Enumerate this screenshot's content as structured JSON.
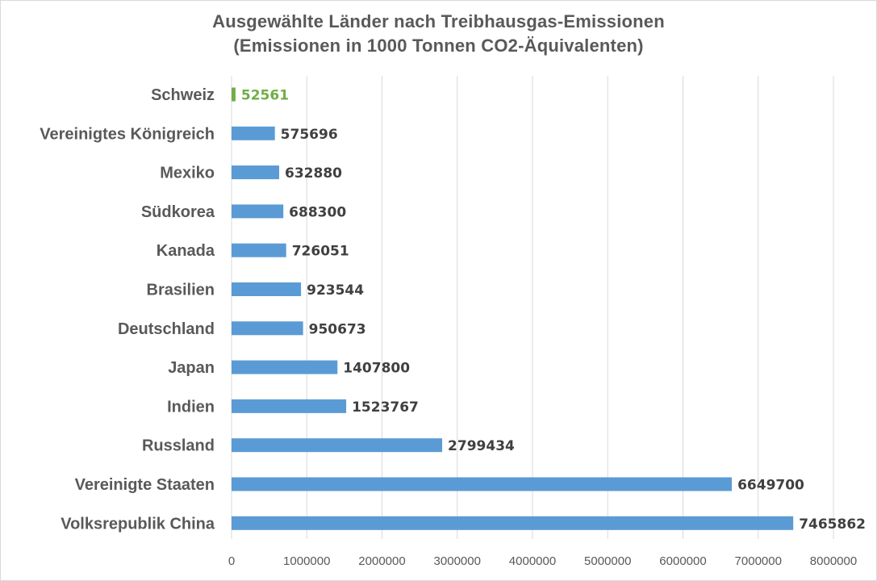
{
  "chart_data": {
    "type": "bar",
    "orientation": "horizontal",
    "title": "Ausgewählte Länder nach Treibhausgas-Emissionen",
    "subtitle": "(Emissionen in 1000 Tonnen CO2-Äquivalenten)",
    "categories": [
      "Schweiz",
      "Vereinigtes Königreich",
      "Mexiko",
      "Südkorea",
      "Kanada",
      "Brasilien",
      "Deutschland",
      "Japan",
      "Indien",
      "Russland",
      "Vereinigte Staaten",
      "Volksrepublik China"
    ],
    "values": [
      52561,
      575696,
      632880,
      688300,
      726051,
      923544,
      950673,
      1407800,
      1523767,
      2799434,
      6649700,
      7465862
    ],
    "data_labels": [
      "52561",
      "575696",
      "632880",
      "688300",
      "726051",
      "923544",
      "950673",
      "1407800",
      "1523767",
      "2799434",
      "6649700",
      "7465862"
    ],
    "highlight_category": "Schweiz",
    "xlim": [
      0,
      8000000
    ],
    "xticks": [
      0,
      1000000,
      2000000,
      3000000,
      4000000,
      5000000,
      6000000,
      7000000,
      8000000
    ],
    "xtick_labels": [
      "0",
      "1000000",
      "2000000",
      "3000000",
      "4000000",
      "5000000",
      "6000000",
      "7000000",
      "8000000"
    ],
    "grid": true,
    "legend": "none",
    "colors": {
      "bar": "#5b9bd5",
      "highlight": "#70ad47",
      "grid": "#d9d9d9",
      "title": "#595959"
    }
  }
}
